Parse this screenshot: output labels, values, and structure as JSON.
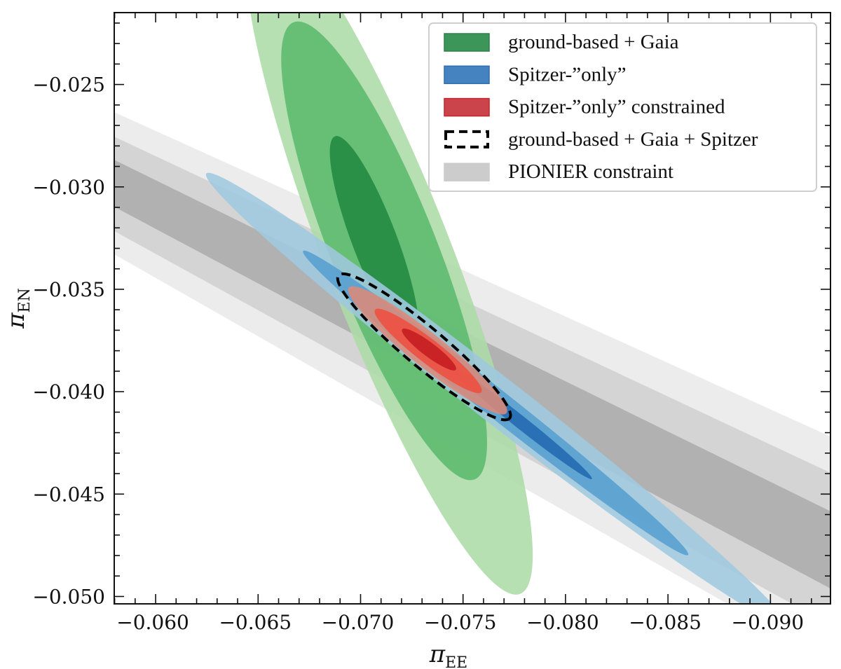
{
  "chart_data": {
    "type": "contour",
    "title": "",
    "xlabel": "π",
    "xlabel_sub": "EE",
    "ylabel": "π",
    "ylabel_sub": "EN",
    "xlim": [
      -0.05798,
      -0.09293
    ],
    "ylim": [
      -0.05036,
      -0.02149
    ],
    "x_reversed": true,
    "grid": false,
    "legend_placement": "top-right",
    "x_ticks": [
      -0.06,
      -0.065,
      -0.07,
      -0.075,
      -0.08,
      -0.085,
      -0.09
    ],
    "x_tick_labels": [
      "−0.060",
      "−0.065",
      "−0.070",
      "−0.075",
      "−0.080",
      "−0.085",
      "−0.090"
    ],
    "y_ticks": [
      -0.025,
      -0.03,
      -0.035,
      -0.04,
      -0.045,
      -0.05
    ],
    "y_tick_labels": [
      "−0.025",
      "−0.030",
      "−0.035",
      "−0.040",
      "−0.045",
      "−0.050"
    ],
    "minor_tick_step": 0.001,
    "bands": {
      "name": "PIONIER constraint",
      "x": [
        -0.05798,
        -0.09293
      ],
      "levels": [
        {
          "upper": [
            -0.02635,
            -0.04219
          ],
          "lower": [
            -0.03329,
            -0.05323
          ],
          "color": "#ececec"
        },
        {
          "upper": [
            -0.02755,
            -0.04396
          ],
          "lower": [
            -0.03216,
            -0.05139
          ],
          "color": "#d4d4d4"
        },
        {
          "upper": [
            -0.02868,
            -0.04584
          ],
          "lower": [
            -0.03097,
            -0.04961
          ],
          "color": "#b1b1b1"
        }
      ]
    },
    "series": [
      {
        "name": "ground-based + Gaia",
        "color": "#3d8f55",
        "contours": [
          {
            "center": [
              -0.07139,
              -0.03346
            ],
            "semi_axes": [
              0.01761,
              0.00308
            ],
            "angle_deg": 68.7,
            "color": "#acdca7"
          },
          {
            "center": [
              -0.07115,
              -0.03312
            ],
            "semi_axes": [
              0.012,
              0.00257
            ],
            "angle_deg": 68.4,
            "color": "#5cb96d"
          },
          {
            "center": [
              -0.07067,
              -0.03258
            ],
            "semi_axes": [
              0.0054,
              0.00109
            ],
            "angle_deg": 69.2,
            "color": "#228a42"
          }
        ]
      },
      {
        "name": "Spitzer-”only”",
        "color": "#3f7fbf",
        "contours": [
          {
            "center": [
              -0.07659,
              -0.04034
            ],
            "semi_axes": [
              0.01789,
              0.00113
            ],
            "angle_deg": 37.9,
            "color": "#9fc8df"
          },
          {
            "center": [
              -0.07659,
              -0.04055
            ],
            "semi_axes": [
              0.01197,
              0.00068
            ],
            "angle_deg": 38.3,
            "color": "#569fcf"
          },
          {
            "center": [
              -0.07778,
              -0.04147
            ],
            "semi_axes": [
              0.00448,
              0.00031
            ],
            "angle_deg": 38.5,
            "color": "#2169b0"
          }
        ]
      },
      {
        "name": "Spitzer-”only” constrained",
        "color": "#c9434a",
        "contours": [
          {
            "center": [
              -0.07327,
              -0.03798
            ],
            "semi_axes": [
              0.00492,
              0.00082
            ],
            "angle_deg": 38.5,
            "color": "#dc8a7a"
          },
          {
            "center": [
              -0.0733,
              -0.03801
            ],
            "semi_axes": [
              0.00328,
              0.00058
            ],
            "angle_deg": 37.8,
            "color": "#ee5040"
          },
          {
            "center": [
              -0.07334,
              -0.03794
            ],
            "semi_axes": [
              0.00164,
              0.00034
            ],
            "angle_deg": 37.0,
            "color": "#c41c20"
          }
        ]
      },
      {
        "name": "ground-based + Gaia + Spitzer",
        "style": "dashed-outline",
        "color": "#000000",
        "contours": [
          {
            "center": [
              -0.0731,
              -0.03781
            ],
            "semi_axes": [
              0.00544,
              0.00096
            ],
            "angle_deg": 39.9
          }
        ]
      }
    ],
    "legend": [
      {
        "label": "ground-based + Gaia",
        "swatch": "fill",
        "color": "#3d9659",
        "edge": "#2e8049"
      },
      {
        "label": "Spitzer-”only”",
        "swatch": "fill",
        "color": "#4483bf",
        "edge": "#2f6fb0"
      },
      {
        "label": "Spitzer-”only” constrained",
        "swatch": "fill",
        "color": "#cc444b",
        "edge": "#c1262e"
      },
      {
        "label": "ground-based + Gaia + Spitzer",
        "swatch": "dashed",
        "color": "#000000"
      },
      {
        "label": "PIONIER constraint",
        "swatch": "fill",
        "color": "#cccccc",
        "edge": "#cccccc"
      }
    ]
  }
}
